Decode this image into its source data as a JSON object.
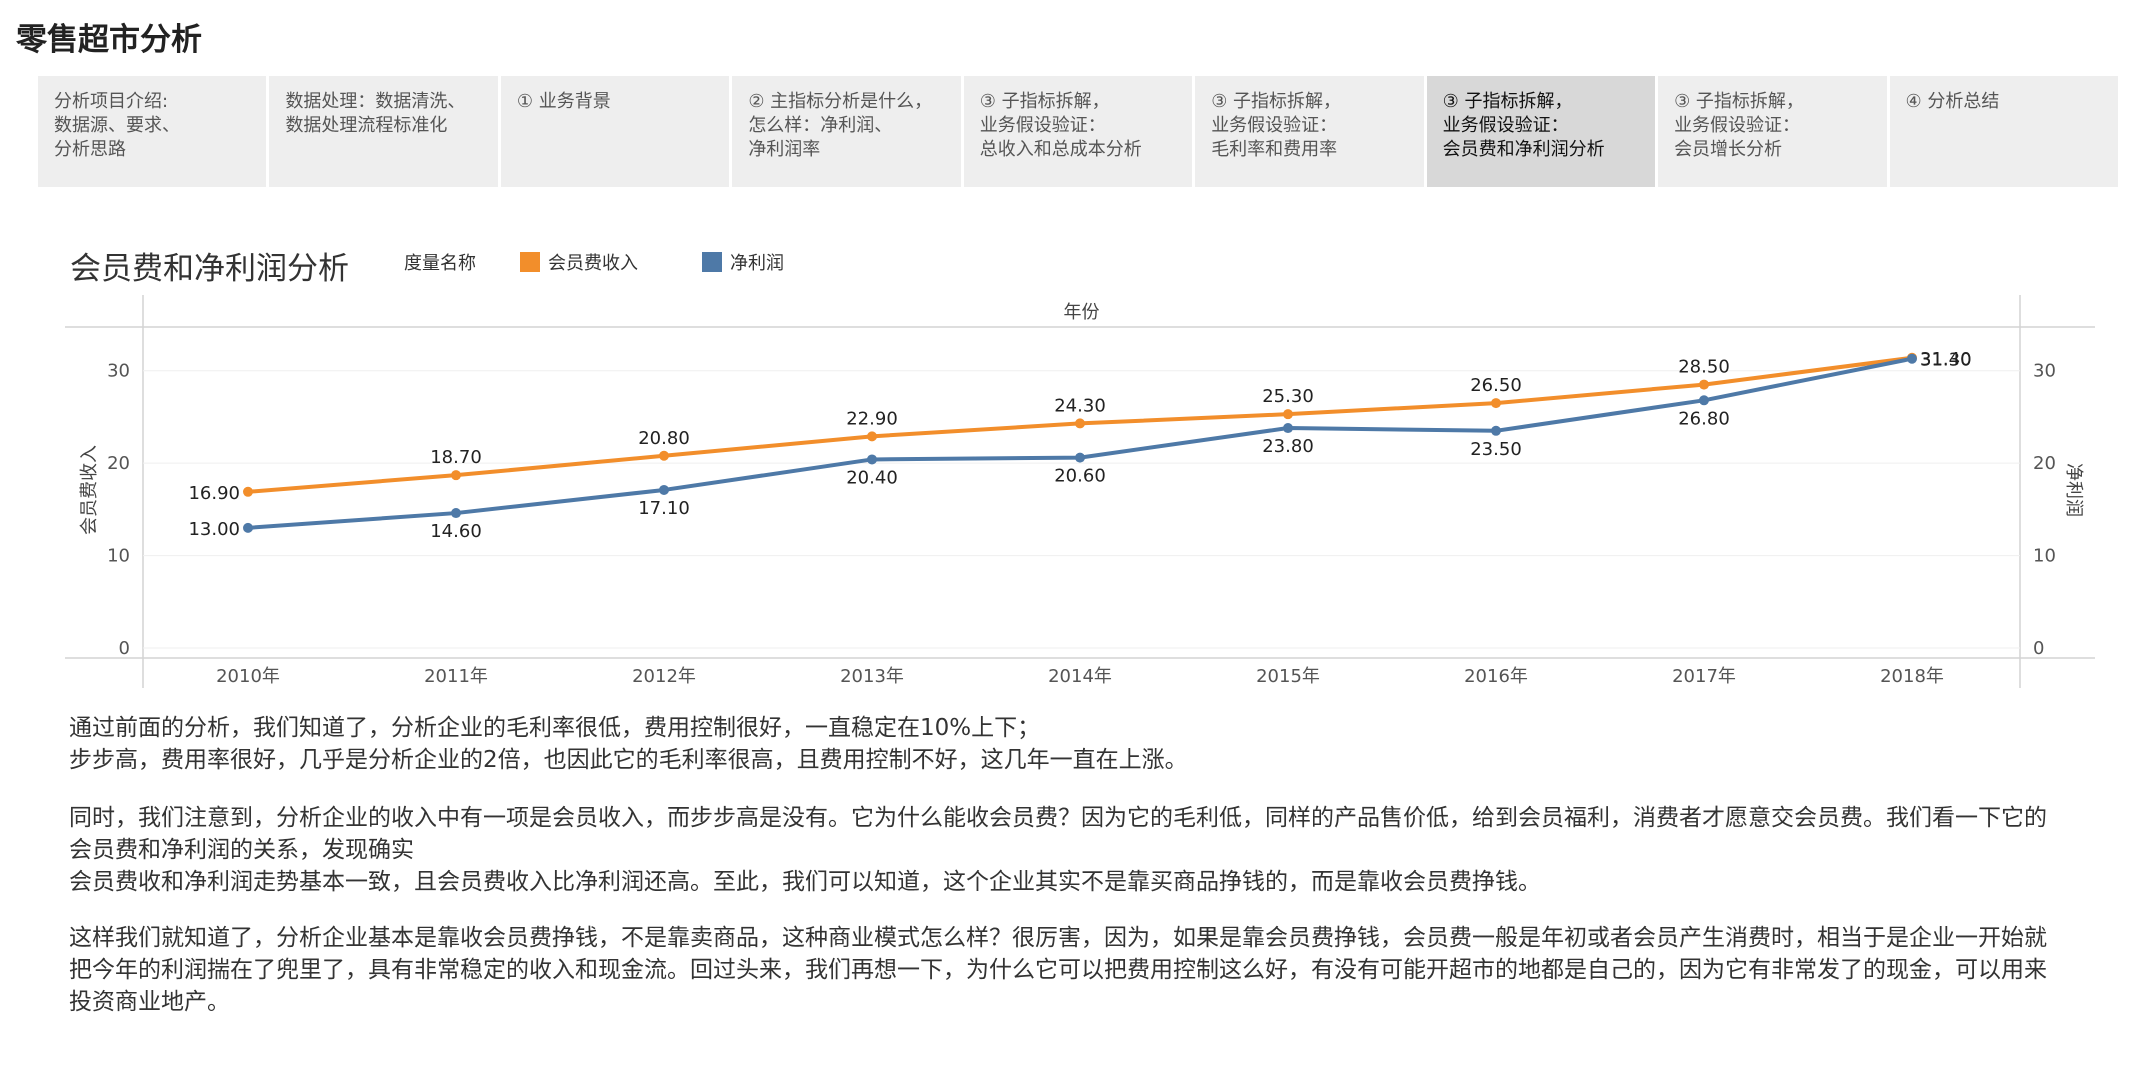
{
  "page": {
    "title": "零售超市分析"
  },
  "tabs": [
    {
      "lines": [
        "分析项目介绍:",
        "数据源、要求、",
        "分析思路"
      ],
      "active": false
    },
    {
      "lines": [
        "数据处理：数据清洗、",
        "数据处理流程标准化"
      ],
      "active": false
    },
    {
      "lines": [
        "① 业务背景"
      ],
      "active": false
    },
    {
      "lines": [
        "② 主指标分析是什么，",
        "怎么样：净利润、",
        "净利润率"
      ],
      "active": false
    },
    {
      "lines": [
        "③ 子指标拆解，",
        "业务假设验证：",
        "总收入和总成本分析"
      ],
      "active": false
    },
    {
      "lines": [
        "③ 子指标拆解，",
        "业务假设验证：",
        "毛利率和费用率"
      ],
      "active": false
    },
    {
      "lines": [
        "③ 子指标拆解，",
        "业务假设验证：",
        "会员费和净利润分析"
      ],
      "active": true
    },
    {
      "lines": [
        "③ 子指标拆解，",
        "业务假设验证：",
        "会员增长分析"
      ],
      "active": false
    },
    {
      "lines": [
        "④ 分析总结"
      ],
      "active": false
    }
  ],
  "chart_title": "会员费和净利润分析",
  "legend": {
    "title": "度量名称"
  },
  "chart_data": {
    "type": "line",
    "header_label": "年份",
    "categories": [
      "2010年",
      "2011年",
      "2012年",
      "2013年",
      "2014年",
      "2015年",
      "2016年",
      "2017年",
      "2018年"
    ],
    "series": [
      {
        "name": "会员费收入",
        "color": "#f28e2b",
        "values": [
          16.9,
          18.7,
          20.8,
          22.9,
          24.3,
          25.3,
          26.5,
          28.5,
          31.4
        ]
      },
      {
        "name": "净利润",
        "color": "#4e79a7",
        "values": [
          13.0,
          14.6,
          17.1,
          20.4,
          20.6,
          23.8,
          23.5,
          26.8,
          31.3
        ]
      }
    ],
    "left_axis_label": "会员费收入",
    "right_axis_label": "净利润",
    "ticks": [
      "0",
      "10",
      "20",
      "30"
    ],
    "ylim": [
      0,
      33
    ],
    "grid": true,
    "legend_position": "top-left"
  },
  "paragraphs": [
    [
      "通过前面的分析，我们知道了，分析企业的毛利率很低，费用控制很好，一直稳定在10%上下；",
      "步步高，费用率很好，几乎是分析企业的2倍，也因此它的毛利率很高，且费用控制不好，这几年一直在上涨。"
    ],
    [
      "同时，我们注意到，分析企业的收入中有一项是会员收入，而步步高是没有。它为什么能收会员费？因为它的毛利低，同样的产品售价低，给到会员福利，消费者才愿意交会员费。我们看一下它的会员费和净利润的关系，发现确实",
      "会员费收和净利润走势基本一致，且会员费收入比净利润还高。至此，我们可以知道，这个企业其实不是靠买商品挣钱的，而是靠收会员费挣钱。"
    ],
    [
      "这样我们就知道了，分析企业基本是靠收会员费挣钱，不是靠卖商品，这种商业模式怎么样？很厉害，因为，如果是靠会员费挣钱，会员费一般是年初或者会员产生消费时，相当于是企业一开始就把今年的利润揣在了兜里了，具有非常稳定的收入和现金流。回过头来，我们再想一下，为什么它可以把费用控制这么好，有没有可能开超市的地都是自己的，因为它有非常发了的现金，可以用来投资商业地产。"
    ]
  ]
}
